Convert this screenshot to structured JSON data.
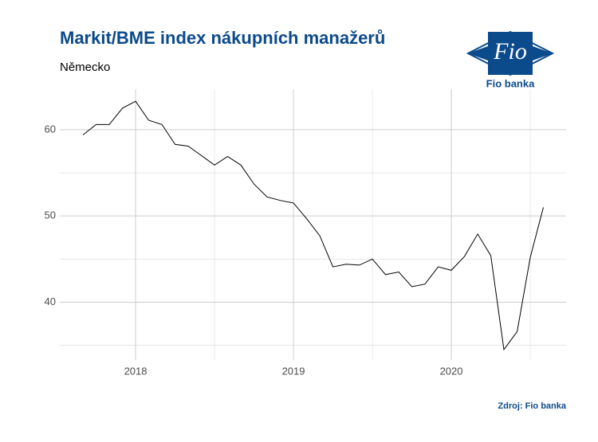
{
  "chart_data": {
    "type": "line",
    "title": "Markit/BME index nákupních manažerů",
    "subtitle": "Německo",
    "source": "Zdroj: Fio banka",
    "logo": {
      "mark": "Fio",
      "name": "Fio banka"
    },
    "x": [
      2017.667,
      2017.75,
      2017.833,
      2017.917,
      2018.0,
      2018.083,
      2018.167,
      2018.25,
      2018.333,
      2018.417,
      2018.5,
      2018.583,
      2018.667,
      2018.75,
      2018.833,
      2018.917,
      2019.0,
      2019.083,
      2019.167,
      2019.25,
      2019.333,
      2019.417,
      2019.5,
      2019.583,
      2019.667,
      2019.75,
      2019.833,
      2019.917,
      2020.0,
      2020.083,
      2020.167,
      2020.25,
      2020.333,
      2020.417,
      2020.5,
      2020.583
    ],
    "series": [
      {
        "name": "Německo",
        "color": "#000000",
        "values": [
          59.4,
          60.6,
          60.6,
          62.5,
          63.3,
          61.1,
          60.6,
          58.3,
          58.1,
          57.0,
          55.9,
          56.9,
          55.9,
          53.7,
          52.2,
          51.8,
          51.5,
          49.7,
          47.7,
          44.1,
          44.4,
          44.3,
          45.0,
          43.2,
          43.5,
          41.8,
          42.1,
          44.1,
          43.7,
          45.3,
          47.9,
          45.4,
          34.5,
          36.6,
          45.2,
          51.0
        ]
      }
    ],
    "xlim": [
      2017.52,
      2020.727
    ],
    "xticks": [
      2018,
      2019,
      2020
    ],
    "ylim": [
      33.3,
      64.7
    ],
    "yticks": [
      40,
      50,
      60
    ],
    "grid": true
  }
}
